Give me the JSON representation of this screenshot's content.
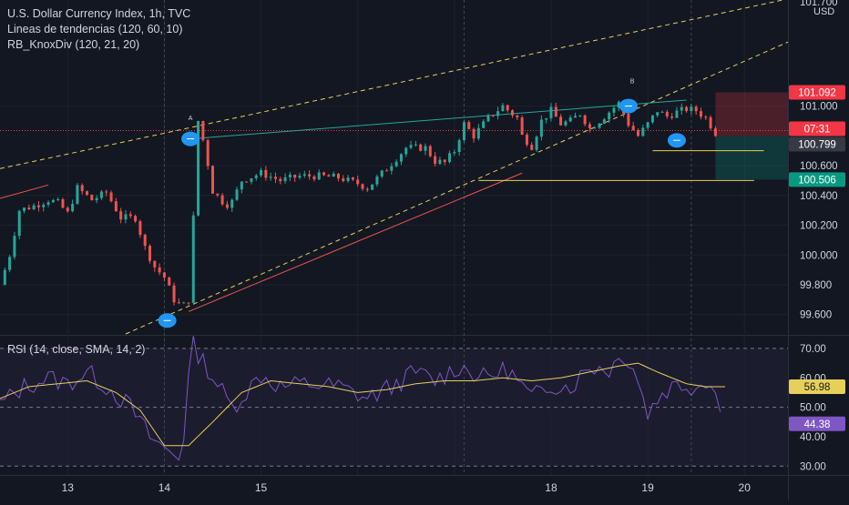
{
  "legend": {
    "title": "U.S. Dollar Currency Index, 1h, TVC",
    "indicator1": "Lineas de tendencias (120, 60, 10)",
    "indicator2": "RB_KnoxDiv (120, 21, 20)",
    "rsi_title": "RSI (14, close, SMA, 14, 2)"
  },
  "currency_label": "USD",
  "colors": {
    "background": "#131722",
    "grid": "#1e222d",
    "text": "#d1d4dc",
    "up": "#26a69a",
    "down": "#ef5350",
    "marker": "#2196f3",
    "trendline": "#e6d05a",
    "rsi_line": "#7e57c2",
    "rsi_ma": "#e6d05a"
  },
  "price_badges": [
    {
      "name": "stop-loss",
      "value": "101.092",
      "color": "#f23645"
    },
    {
      "name": "last-close",
      "value": "07:31",
      "color": "#f23645"
    },
    {
      "name": "current",
      "value": "100.799",
      "color": "#363a45"
    },
    {
      "name": "take-profit",
      "value": "100.506",
      "color": "#089981"
    }
  ],
  "rsi_badges": [
    {
      "name": "rsi-ma",
      "value": "56.98",
      "color": "#e6d05a"
    },
    {
      "name": "rsi",
      "value": "44.38",
      "color": "#7e57c2"
    }
  ],
  "pivot_labels": [
    {
      "text": "A",
      "day": 14.27,
      "price": 100.88
    },
    {
      "text": "B",
      "day": 18.84,
      "price": 101.13
    }
  ],
  "chart_data": [
    {
      "type": "candlestick",
      "title": "U.S. Dollar Currency Index, 1h, TVC",
      "x_unit": "day of month (fractional, hourly bars)",
      "x_ticks": [
        13,
        14,
        15,
        16,
        17,
        18,
        19,
        20
      ],
      "x_tick_labels": [
        "13",
        "14",
        "15",
        "",
        "",
        "18",
        "19",
        "20"
      ],
      "y_ticks": [
        99.6,
        99.8,
        100.0,
        100.2,
        100.4,
        100.6,
        101.0,
        101.7
      ],
      "y_tick_labels": [
        "99.600",
        "99.800",
        "100.000",
        "100.200",
        "100.400",
        "100.600",
        "101.000",
        "101.700"
      ],
      "ylim": [
        99.47,
        101.7
      ],
      "xlim": [
        12.3,
        20.45
      ],
      "close_path": [
        [
          12.3,
          99.8
        ],
        [
          12.4,
          100.0
        ],
        [
          12.5,
          100.3
        ],
        [
          12.65,
          100.33
        ],
        [
          12.8,
          100.37
        ],
        [
          12.9,
          100.35
        ],
        [
          13.0,
          100.28
        ],
        [
          13.1,
          100.45
        ],
        [
          13.25,
          100.37
        ],
        [
          13.4,
          100.42
        ],
        [
          13.55,
          100.25
        ],
        [
          13.7,
          100.25
        ],
        [
          13.8,
          100.05
        ],
        [
          13.9,
          99.92
        ],
        [
          14.0,
          99.85
        ],
        [
          14.1,
          99.7
        ],
        [
          14.18,
          99.65
        ],
        [
          14.25,
          99.7
        ],
        [
          14.3,
          100.25
        ],
        [
          14.35,
          100.9
        ],
        [
          14.42,
          100.72
        ],
        [
          14.5,
          100.43
        ],
        [
          14.6,
          100.36
        ],
        [
          14.68,
          100.33
        ],
        [
          14.8,
          100.5
        ],
        [
          15.0,
          100.55
        ],
        [
          15.2,
          100.5
        ],
        [
          15.4,
          100.53
        ],
        [
          15.6,
          100.53
        ],
        [
          15.8,
          100.52
        ],
        [
          16.0,
          100.48
        ],
        [
          16.1,
          100.45
        ],
        [
          16.3,
          100.58
        ],
        [
          16.5,
          100.72
        ],
        [
          16.7,
          100.72
        ],
        [
          16.8,
          100.63
        ],
        [
          16.9,
          100.62
        ],
        [
          17.0,
          100.7
        ],
        [
          17.1,
          100.88
        ],
        [
          17.2,
          100.8
        ],
        [
          17.35,
          100.92
        ],
        [
          17.5,
          101.0
        ],
        [
          17.65,
          100.92
        ],
        [
          17.7,
          100.8
        ],
        [
          17.8,
          100.73
        ],
        [
          17.9,
          100.9
        ],
        [
          18.0,
          100.97
        ],
        [
          18.1,
          100.88
        ],
        [
          18.2,
          100.9
        ],
        [
          18.3,
          100.95
        ],
        [
          18.4,
          100.85
        ],
        [
          18.5,
          100.9
        ],
        [
          18.7,
          101.02
        ],
        [
          18.8,
          100.88
        ],
        [
          18.9,
          100.8
        ],
        [
          19.0,
          100.88
        ],
        [
          19.1,
          100.97
        ],
        [
          19.2,
          100.93
        ],
        [
          19.3,
          100.96
        ],
        [
          19.4,
          100.98
        ],
        [
          19.5,
          100.97
        ],
        [
          19.6,
          100.92
        ],
        [
          19.7,
          100.82
        ]
      ],
      "price_levels": {
        "entry": 100.799,
        "stop_loss": 101.092,
        "take_profit": 100.506
      },
      "trendlines": [
        {
          "kind": "dashed-upper",
          "points": [
            [
              12.3,
              100.58
            ],
            [
              20.45,
              101.72
            ]
          ]
        },
        {
          "kind": "dashed-lower",
          "points": [
            [
              13.6,
              99.47
            ],
            [
              20.45,
              101.43
            ]
          ]
        },
        {
          "kind": "divergence-red",
          "points": [
            [
              12.3,
              100.38
            ],
            [
              12.8,
              100.47
            ]
          ]
        },
        {
          "kind": "divergence-red",
          "points": [
            [
              14.25,
              99.62
            ],
            [
              17.7,
              100.55
            ]
          ]
        },
        {
          "kind": "divergence-green",
          "points": [
            [
              14.27,
              100.78
            ],
            [
              19.4,
              101.04
            ]
          ]
        },
        {
          "kind": "support",
          "points": [
            [
              17.25,
              100.5
            ],
            [
              20.1,
              100.5
            ]
          ]
        },
        {
          "kind": "support",
          "points": [
            [
              19.05,
              100.7
            ],
            [
              20.2,
              100.7
            ]
          ]
        }
      ],
      "markers": [
        {
          "day": 14.27,
          "price": 100.78
        },
        {
          "day": 14.03,
          "price": 99.56
        },
        {
          "day": 18.8,
          "price": 101.0
        },
        {
          "day": 19.3,
          "price": 100.77
        }
      ]
    },
    {
      "type": "line",
      "title": "RSI (14, close, SMA, 14, 2)",
      "y_ticks": [
        30,
        40,
        50,
        60,
        70
      ],
      "y_tick_labels": [
        "30.00",
        "40.00",
        "50.00",
        "60.00",
        "70.00"
      ],
      "ylim": [
        27,
        74
      ],
      "bands": {
        "upper": 70,
        "middle": 50,
        "lower": 30
      },
      "series": [
        {
          "values": [
            [
              12.3,
              51
            ],
            [
              12.55,
              57
            ],
            [
              12.8,
              60
            ],
            [
              13.0,
              58
            ],
            [
              13.2,
              62
            ],
            [
              13.45,
              56
            ],
            [
              13.65,
              50
            ],
            [
              13.85,
              40
            ],
            [
              14.0,
              36
            ],
            [
              14.18,
              33
            ],
            [
              14.28,
              72
            ],
            [
              14.45,
              63
            ],
            [
              14.7,
              50
            ],
            [
              15.0,
              61
            ],
            [
              15.2,
              57
            ],
            [
              15.5,
              58
            ],
            [
              15.8,
              57
            ],
            [
              16.1,
              53
            ],
            [
              16.35,
              57
            ],
            [
              16.6,
              62
            ],
            [
              16.8,
              59
            ],
            [
              17.05,
              64
            ],
            [
              17.3,
              60
            ],
            [
              17.55,
              63
            ],
            [
              17.8,
              53
            ],
            [
              18.0,
              58
            ],
            [
              18.2,
              57
            ],
            [
              18.4,
              64
            ],
            [
              18.6,
              63
            ],
            [
              18.75,
              68
            ],
            [
              18.85,
              64
            ],
            [
              19.0,
              48
            ],
            [
              19.15,
              55
            ],
            [
              19.3,
              58
            ],
            [
              19.5,
              57
            ],
            [
              19.65,
              60
            ],
            [
              19.8,
              44
            ]
          ]
        },
        {
          "values": [
            [
              12.3,
              53
            ],
            [
              12.6,
              57
            ],
            [
              12.9,
              58
            ],
            [
              13.2,
              59
            ],
            [
              13.5,
              55
            ],
            [
              13.75,
              49
            ],
            [
              14.0,
              37
            ],
            [
              14.25,
              37
            ],
            [
              14.5,
              45
            ],
            [
              14.8,
              55
            ],
            [
              15.1,
              59
            ],
            [
              15.4,
              58
            ],
            [
              15.7,
              57
            ],
            [
              16.0,
              55
            ],
            [
              16.3,
              56
            ],
            [
              16.6,
              58
            ],
            [
              16.9,
              59
            ],
            [
              17.2,
              59
            ],
            [
              17.5,
              60
            ],
            [
              17.8,
              59
            ],
            [
              18.1,
              60
            ],
            [
              18.4,
              62
            ],
            [
              18.7,
              64
            ],
            [
              18.9,
              65
            ],
            [
              19.1,
              62
            ],
            [
              19.4,
              58
            ],
            [
              19.6,
              57
            ],
            [
              19.85,
              56.98
            ]
          ]
        }
      ],
      "last_values": {
        "rsi": 44.38,
        "ma": 56.98
      }
    }
  ]
}
